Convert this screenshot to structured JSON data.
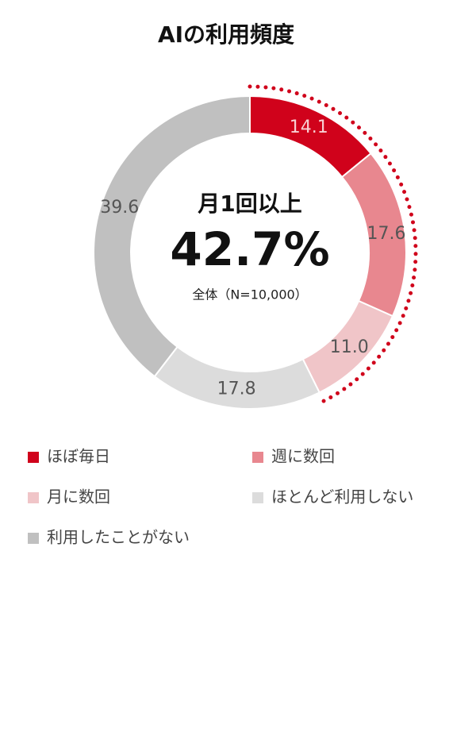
{
  "chart_data": {
    "type": "donut",
    "title": "AIの利用頻度",
    "categories": [
      "ほぼ毎日",
      "週に数回",
      "月に数回",
      "ほとんど利用しない",
      "利用したことがない"
    ],
    "values": [
      14.1,
      17.6,
      11.0,
      17.8,
      39.6
    ],
    "value_labels": [
      "14.1",
      "17.6",
      "11.0",
      "17.8",
      "39.6"
    ],
    "colors": [
      "#d0021b",
      "#e8878f",
      "#f0c5c8",
      "#dcdcdc",
      "#c0c0c0"
    ],
    "center_heading": "月1回以上",
    "center_value": "42.7%",
    "center_note": "全体（N=10,000）"
  }
}
